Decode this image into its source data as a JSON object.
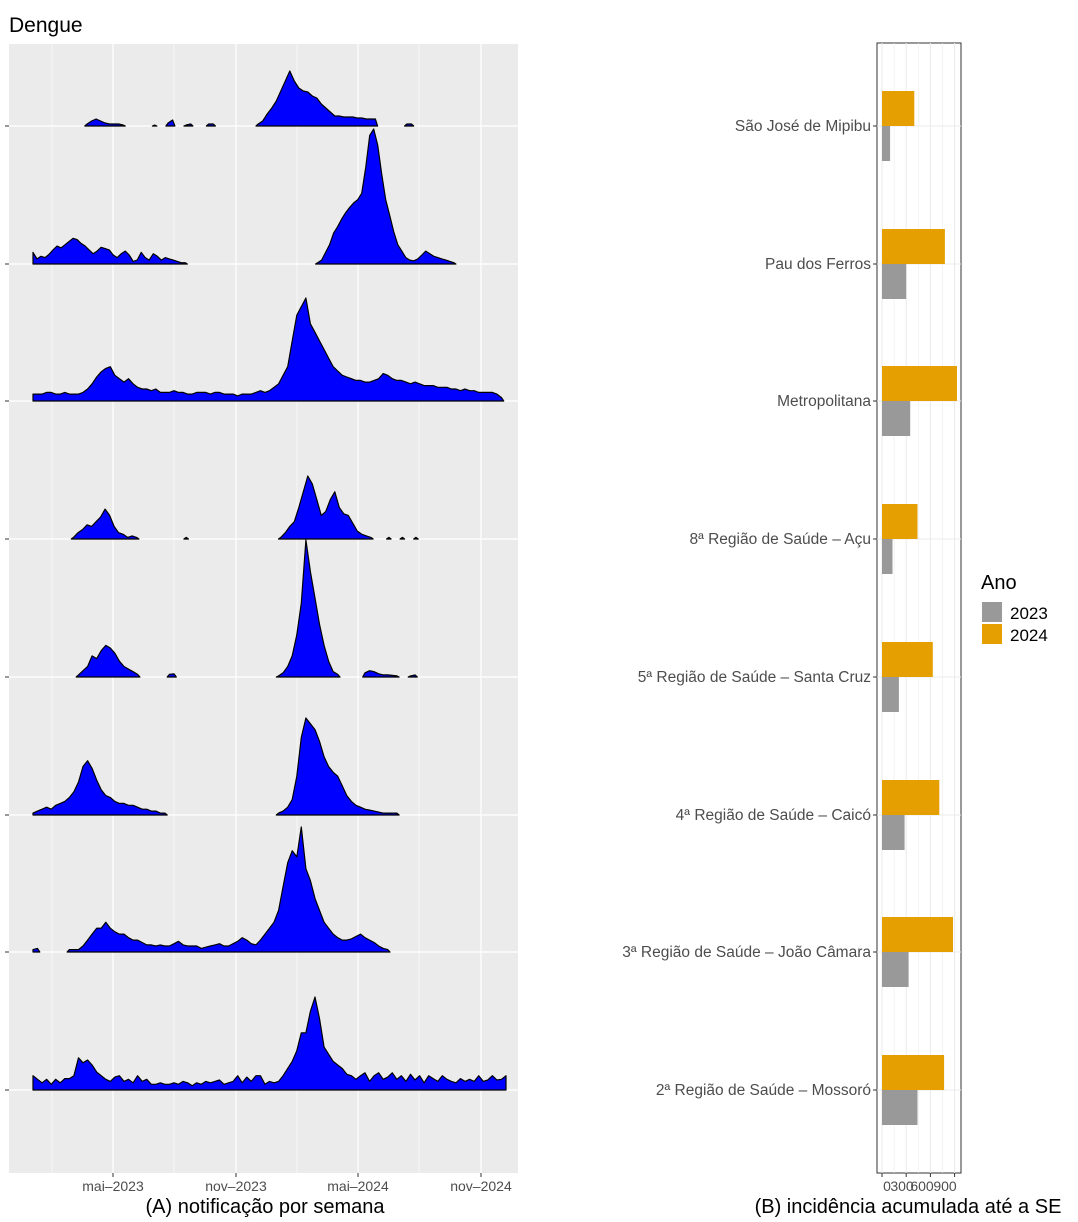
{
  "title": "Dengue",
  "chart_data": [
    {
      "type": "area",
      "caption": "(A) notificação por semana",
      "x_tick_labels": [
        "mai–2023",
        "nov–2023",
        "mai–2024",
        "nov–2024"
      ],
      "x_range": [
        "2023-01-01",
        "2024-12-31"
      ],
      "note": "ridge panels share the row order of panel B (top to bottom); y values are relative weekly notifications",
      "series": [
        {
          "key": "sjm",
          "values": [
            0,
            0,
            0,
            0,
            0,
            0,
            0,
            0,
            0,
            0,
            0,
            0,
            2,
            5,
            7,
            5,
            3,
            2,
            2,
            2,
            1,
            0,
            0,
            0,
            0,
            0,
            0,
            1,
            0,
            0,
            3,
            6,
            0,
            0,
            1,
            2,
            0,
            0,
            0,
            2,
            2,
            0,
            0,
            0,
            0,
            0,
            0,
            0,
            0,
            0,
            2,
            5,
            12,
            18,
            25,
            35,
            45,
            55,
            45,
            38,
            35,
            34,
            30,
            28,
            22,
            18,
            14,
            10,
            10,
            9,
            9,
            9,
            8,
            8,
            7,
            7,
            7,
            0,
            0,
            0,
            0,
            0,
            0,
            2,
            2,
            0,
            0,
            0,
            0,
            0,
            0,
            0,
            0,
            0,
            0,
            0,
            0,
            0,
            0,
            0,
            0,
            0,
            0,
            0,
            0,
            0
          ]
        },
        {
          "key": "pf",
          "values": [
            18,
            8,
            12,
            10,
            15,
            22,
            28,
            25,
            30,
            35,
            40,
            38,
            32,
            28,
            22,
            16,
            20,
            26,
            24,
            22,
            14,
            10,
            16,
            20,
            14,
            4,
            6,
            18,
            10,
            6,
            16,
            12,
            6,
            10,
            8,
            6,
            4,
            2,
            2,
            0,
            0,
            0,
            0,
            0,
            0,
            0,
            0,
            0,
            0,
            0,
            0,
            0,
            0,
            0,
            0,
            0,
            0,
            0,
            0,
            0,
            0,
            0,
            0,
            0,
            0,
            0,
            0,
            0,
            0,
            0,
            0,
            2,
            6,
            18,
            30,
            48,
            58,
            70,
            80,
            88,
            95,
            100,
            110,
            150,
            200,
            210,
            185,
            140,
            100,
            75,
            50,
            30,
            20,
            10,
            6,
            5,
            8,
            14,
            20,
            16,
            12,
            10,
            8,
            6,
            4,
            2,
            0,
            0,
            0,
            0,
            0,
            0,
            0,
            0,
            0,
            0,
            0,
            0,
            0
          ]
        },
        {
          "key": "metro",
          "values": [
            8,
            8,
            8,
            10,
            10,
            8,
            8,
            10,
            8,
            8,
            8,
            10,
            14,
            20,
            28,
            34,
            38,
            40,
            30,
            26,
            22,
            26,
            20,
            16,
            14,
            14,
            12,
            14,
            10,
            10,
            10,
            12,
            10,
            10,
            8,
            8,
            10,
            10,
            10,
            8,
            10,
            10,
            8,
            8,
            8,
            6,
            8,
            8,
            8,
            10,
            12,
            10,
            12,
            16,
            20,
            30,
            40,
            70,
            100,
            110,
            120,
            90,
            80,
            70,
            60,
            50,
            40,
            35,
            30,
            28,
            26,
            24,
            24,
            22,
            22,
            24,
            26,
            32,
            30,
            26,
            24,
            24,
            22,
            20,
            22,
            20,
            18,
            18,
            18,
            16,
            16,
            16,
            14,
            14,
            12,
            14,
            12,
            12,
            10,
            10,
            10,
            10,
            8,
            4,
            0
          ]
        },
        {
          "key": "acu",
          "values": [
            0,
            0,
            0,
            0,
            0,
            0,
            0,
            0,
            0,
            2,
            8,
            12,
            18,
            16,
            22,
            28,
            38,
            30,
            16,
            8,
            6,
            2,
            4,
            2,
            0,
            0,
            0,
            0,
            0,
            0,
            0,
            0,
            0,
            0,
            2,
            0,
            0,
            0,
            0,
            0,
            0,
            0,
            0,
            0,
            0,
            0,
            0,
            0,
            0,
            0,
            0,
            0,
            0,
            0,
            0,
            2,
            8,
            16,
            22,
            40,
            60,
            80,
            70,
            50,
            30,
            35,
            50,
            60,
            40,
            32,
            30,
            20,
            10,
            6,
            4,
            2,
            0,
            0,
            0,
            2,
            0,
            0,
            2,
            0,
            0,
            2,
            0,
            0,
            0,
            0,
            0,
            0,
            0,
            0,
            0,
            0,
            0,
            0,
            0,
            0,
            0,
            0,
            0,
            0,
            0,
            0
          ]
        },
        {
          "key": "santacruz",
          "values": [
            0,
            0,
            0,
            0,
            0,
            0,
            0,
            0,
            0,
            0,
            4,
            12,
            20,
            40,
            35,
            50,
            60,
            55,
            45,
            30,
            20,
            15,
            10,
            5,
            0,
            0,
            0,
            0,
            0,
            0,
            5,
            6,
            0,
            0,
            0,
            0,
            0,
            0,
            0,
            0,
            0,
            0,
            0,
            0,
            0,
            0,
            0,
            0,
            0,
            0,
            0,
            0,
            0,
            0,
            2,
            8,
            20,
            40,
            80,
            140,
            260,
            200,
            150,
            100,
            60,
            30,
            10,
            5,
            0,
            0,
            0,
            0,
            0,
            8,
            12,
            10,
            6,
            4,
            4,
            3,
            2,
            0,
            0,
            2,
            4,
            0,
            0,
            0,
            0,
            0,
            0,
            0,
            0,
            0,
            0,
            0,
            0,
            0,
            0,
            0,
            0,
            0,
            0,
            0,
            0
          ]
        },
        {
          "key": "caico",
          "values": [
            2,
            4,
            6,
            8,
            6,
            10,
            12,
            14,
            18,
            24,
            34,
            50,
            56,
            48,
            36,
            26,
            20,
            18,
            14,
            12,
            12,
            10,
            10,
            8,
            6,
            6,
            4,
            4,
            2,
            2,
            0,
            0,
            0,
            0,
            0,
            0,
            0,
            0,
            0,
            0,
            0,
            0,
            0,
            0,
            0,
            0,
            0,
            0,
            0,
            0,
            0,
            0,
            0,
            0,
            2,
            4,
            8,
            16,
            40,
            80,
            100,
            94,
            88,
            76,
            60,
            50,
            44,
            40,
            30,
            20,
            14,
            10,
            8,
            6,
            5,
            4,
            3,
            2,
            2,
            2,
            2,
            0,
            0,
            0,
            0,
            0,
            0,
            0,
            0,
            0,
            0,
            0,
            0,
            0,
            0,
            0,
            0,
            0,
            0,
            0,
            0,
            0,
            0,
            0,
            0
          ]
        },
        {
          "key": "jc",
          "values": [
            4,
            6,
            0,
            0,
            0,
            0,
            0,
            0,
            4,
            4,
            4,
            10,
            20,
            30,
            40,
            40,
            50,
            40,
            34,
            30,
            30,
            24,
            20,
            20,
            16,
            12,
            12,
            10,
            12,
            10,
            10,
            14,
            18,
            12,
            10,
            10,
            10,
            6,
            8,
            10,
            12,
            14,
            10,
            10,
            14,
            18,
            24,
            20,
            14,
            12,
            20,
            30,
            40,
            50,
            70,
            110,
            150,
            170,
            160,
            210,
            140,
            120,
            90,
            70,
            50,
            40,
            30,
            24,
            20,
            20,
            22,
            26,
            30,
            24,
            20,
            16,
            10,
            6,
            4,
            0,
            0,
            0,
            0,
            0,
            0,
            0,
            0,
            0,
            0,
            0,
            0,
            0,
            0,
            0,
            0,
            0,
            0,
            0,
            0,
            0,
            0,
            0,
            0,
            0,
            0
          ]
        },
        {
          "key": "mossoro",
          "values": [
            20,
            15,
            10,
            15,
            8,
            15,
            10,
            16,
            16,
            20,
            45,
            38,
            42,
            35,
            25,
            20,
            15,
            12,
            18,
            20,
            12,
            15,
            10,
            20,
            12,
            15,
            8,
            8,
            10,
            8,
            8,
            10,
            8,
            12,
            10,
            6,
            10,
            8,
            12,
            10,
            12,
            14,
            8,
            10,
            12,
            20,
            10,
            18,
            12,
            20,
            20,
            8,
            12,
            10,
            12,
            20,
            30,
            40,
            55,
            80,
            80,
            110,
            130,
            100,
            60,
            50,
            40,
            35,
            30,
            22,
            20,
            15,
            20,
            24,
            12,
            20,
            24,
            15,
            18,
            24,
            15,
            20,
            12,
            22,
            14,
            20,
            10,
            20,
            16,
            12,
            20,
            15,
            12,
            10,
            16,
            12,
            15,
            12,
            20,
            12,
            14,
            20,
            14,
            15,
            20
          ]
        }
      ]
    },
    {
      "type": "bar",
      "orientation": "horizontal",
      "caption": "(B) incidência acumulada até a SE",
      "x_tick_labels": [
        "0",
        "300",
        "600",
        "900"
      ],
      "xlim": [
        0,
        980
      ],
      "legend": {
        "title": "Ano",
        "position": "right",
        "entries": [
          {
            "name": "2023",
            "color": "#999999"
          },
          {
            "name": "2024",
            "color": "#E69F00"
          }
        ]
      },
      "categories": [
        "São José de Mipibu",
        "Pau dos Ferros",
        "Metropolitana",
        "8ª Região de Saúde – Açu",
        "5ª Região de Saúde – Santa Cruz",
        "4ª Região de Saúde – Caicó",
        "3ª Região de Saúde – João Câmara",
        "2ª Região de Saúde – Mossoró"
      ],
      "series": [
        {
          "name": "2023",
          "values": [
            100,
            300,
            350,
            130,
            210,
            280,
            330,
            440
          ]
        },
        {
          "name": "2024",
          "values": [
            400,
            780,
            930,
            440,
            630,
            710,
            880,
            770
          ]
        }
      ]
    }
  ],
  "colors": {
    "panel_bg": "#EBEBEB",
    "grid": "#FFFFFF",
    "area_fill": "#0000FF",
    "area_line": "#000000"
  }
}
